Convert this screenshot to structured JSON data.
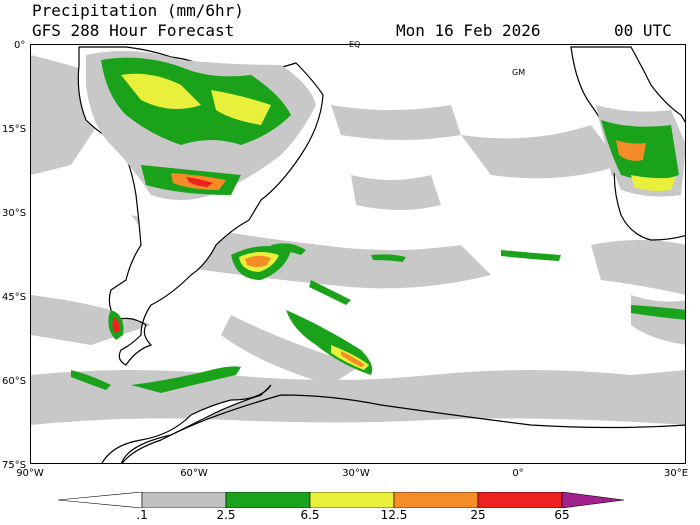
{
  "header": {
    "line1": "Precipitation (mm/6hr)",
    "line2": "GFS 288 Hour Forecast",
    "date": "Mon 16 Feb 2026",
    "time": "00 UTC"
  },
  "axes": {
    "lat_labels": [
      "0°",
      "15°S",
      "30°S",
      "45°S",
      "60°S",
      "75°S"
    ],
    "lon_labels": [
      "90°W",
      "60°W",
      "30°W",
      "0°",
      "30°E"
    ]
  },
  "map_labels": {
    "equator": "EQ",
    "greenwich": "GM"
  },
  "colorbar": {
    "labels": [
      ".1",
      "2.5",
      "6.5",
      "12.5",
      "25",
      "65"
    ],
    "colors": [
      "#ffffff",
      "#c0c0c0",
      "#1aa31a",
      "#e8f03c",
      "#f58c28",
      "#ee2020",
      "#a0208c"
    ]
  },
  "colors": {
    "land_line": "#000000",
    "light_precip": "#c8c8c8"
  }
}
